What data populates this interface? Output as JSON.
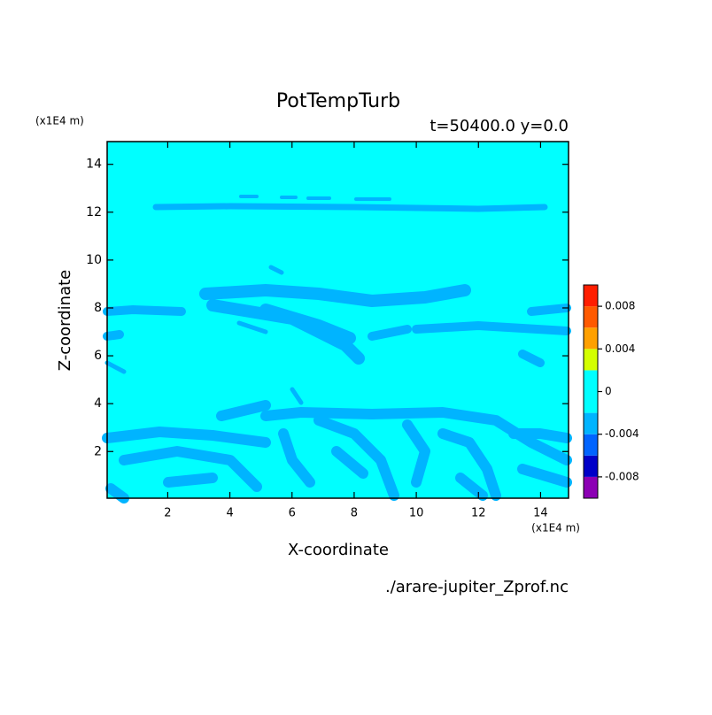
{
  "chart_data": {
    "type": "contour",
    "title": "PotTempTurb",
    "subtitle": "t=50400.0 y=0.0",
    "xlabel": "X-coordinate",
    "ylabel": "Z-coordinate",
    "x_unit": "(x1E4 m)",
    "y_unit": "(x1E4 m)",
    "file": "./arare-jupiter_Zprof.nc",
    "xlim": [
      0.05,
      14.9
    ],
    "xticks": [
      2,
      4,
      6,
      8,
      10,
      12,
      14
    ],
    "ylim": [
      0.05,
      14.95
    ],
    "yticks": [
      2,
      4,
      6,
      8,
      10,
      12,
      14
    ],
    "levels": [
      -0.01,
      -0.008,
      -0.006,
      -0.004,
      -0.002,
      0.002,
      0.004,
      0.006,
      0.008,
      0.01
    ],
    "colors": [
      "#8c00b4",
      "#0000c8",
      "#0064ff",
      "#00b4ff",
      "#00ffff",
      "#d4ff00",
      "#ffa000",
      "#ff5a00",
      "#ff1e00",
      "#ffb4b4"
    ],
    "colorbar_ticks": [
      -0.008,
      -0.004,
      0,
      0.004,
      0.008
    ]
  }
}
